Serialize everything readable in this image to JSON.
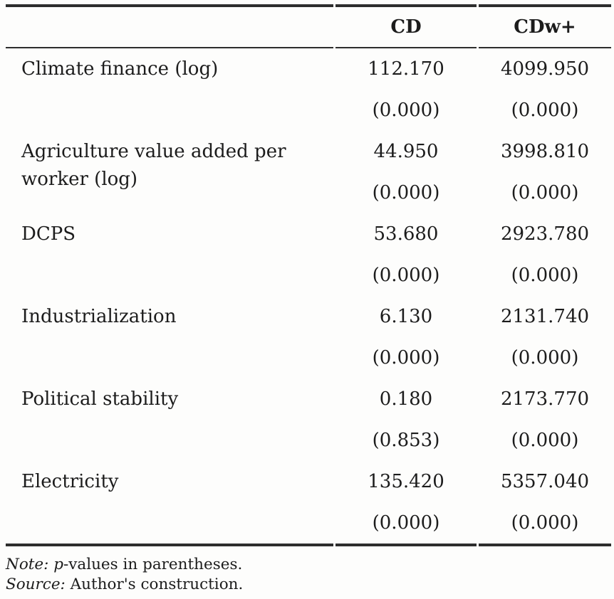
{
  "table": {
    "columns": [
      "CD",
      "CDw+"
    ],
    "rows": [
      {
        "label": "Climate finance (log)",
        "cd": "112.170",
        "cdw": "4099.950",
        "cd_p": "(0.000)",
        "cdw_p": "(0.000)"
      },
      {
        "label": "Agriculture value added per worker (log)",
        "cd": "44.950",
        "cdw": "3998.810",
        "cd_p": "(0.000)",
        "cdw_p": "(0.000)"
      },
      {
        "label": "DCPS",
        "cd": "53.680",
        "cdw": "2923.780",
        "cd_p": "(0.000)",
        "cdw_p": "(0.000)"
      },
      {
        "label": "Industrialization",
        "cd": "6.130",
        "cdw": "2131.740",
        "cd_p": "(0.000)",
        "cdw_p": "(0.000)"
      },
      {
        "label": "Political stability",
        "cd": "0.180",
        "cdw": "2173.770",
        "cd_p": "(0.853)",
        "cdw_p": "(0.000)"
      },
      {
        "label": "Electricity",
        "cd": "135.420",
        "cdw": "5357.040",
        "cd_p": "(0.000)",
        "cdw_p": "(0.000)"
      }
    ]
  },
  "notes": {
    "note_prefix": "Note: ",
    "note_symbol": "p",
    "note_rest": "-values in parentheses.",
    "source_prefix": "Source: ",
    "source_rest": "Author's construction."
  },
  "colors": {
    "text": "#1c1c1c",
    "rule": "#2d2d2d",
    "background": "#fdfdfc"
  }
}
